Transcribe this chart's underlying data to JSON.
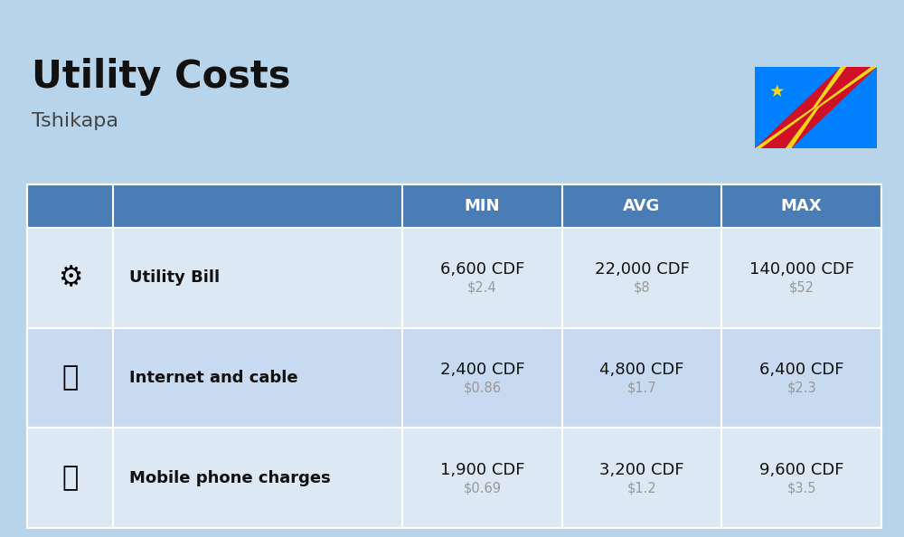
{
  "title": "Utility Costs",
  "subtitle": "Tshikapa",
  "background_color": "#b8d4ea",
  "header_color": "#4a7db5",
  "header_text_color": "#ffffff",
  "row_color_light": "#dce9f5",
  "row_color_dark": "#c8daf0",
  "table_border_color": "#ffffff",
  "col_headers": [
    "MIN",
    "AVG",
    "MAX"
  ],
  "rows": [
    {
      "label": "Utility Bill",
      "min_cdf": "6,600 CDF",
      "min_usd": "$2.4",
      "avg_cdf": "22,000 CDF",
      "avg_usd": "$8",
      "max_cdf": "140,000 CDF",
      "max_usd": "$52",
      "icon": "⚡"
    },
    {
      "label": "Internet and cable",
      "min_cdf": "2,400 CDF",
      "min_usd": "$0.86",
      "avg_cdf": "4,800 CDF",
      "avg_usd": "$1.7",
      "max_cdf": "6,400 CDF",
      "max_usd": "$2.3",
      "icon": "📡"
    },
    {
      "label": "Mobile phone charges",
      "min_cdf": "1,900 CDF",
      "min_usd": "$0.69",
      "avg_cdf": "3,200 CDF",
      "avg_usd": "$1.2",
      "max_cdf": "9,600 CDF",
      "max_usd": "$3.5",
      "icon": "📱"
    }
  ],
  "cdf_fontsize": 13,
  "usd_fontsize": 10.5,
  "label_fontsize": 13,
  "header_fontsize": 13,
  "title_fontsize": 30,
  "subtitle_fontsize": 16,
  "usd_color": "#999999",
  "label_color": "#111111",
  "cdf_color": "#111111",
  "flag_blue": "#007FFF",
  "flag_red": "#CE1126",
  "flag_yellow": "#F7D618"
}
